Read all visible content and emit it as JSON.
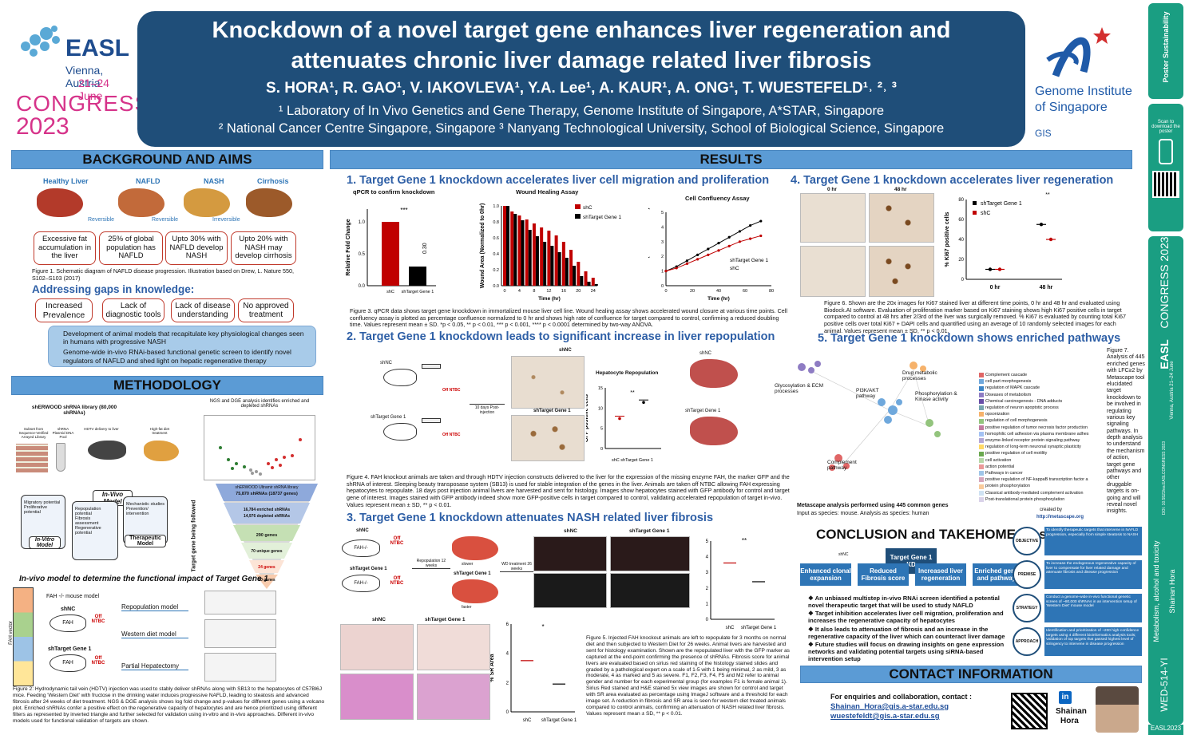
{
  "header": {
    "title_line1": "Knockdown of a novel target gene enhances liver regeneration and",
    "title_line2": "attenuates chronic liver damage related liver fibrosis",
    "authors": "S. HORA¹, R. GAO¹, V. IAKOVLEVA¹, Y.A. Lee¹, A. KAUR¹, A. ONG¹, T. WUESTEFELD¹˒ ²˒ ³",
    "affil1": "¹ Laboratory of In Vivo Genetics and Gene Therapy, Genome Institute of Singapore, A*STAR, Singapore",
    "affil2": "² National Cancer Centre Singapore, Singapore ³ Nanyang Technological University, School of Biological Science, Singapore"
  },
  "easl": {
    "name": "EASL",
    "city": "Vienna, Austria",
    "dates": "21–24 June",
    "congress": "CONGRESS",
    "year": "2023"
  },
  "gis": {
    "line1": "Genome Institute",
    "line2": "of Singapore",
    "abbr": "GIS"
  },
  "sidebar": {
    "scan": "Scan to download the poster",
    "congress": "CONGRESS 2023",
    "easl": "EASL",
    "vienna": "Vienna, Austria 21–24 June",
    "topic": "Metabolism, alcohol and toxicity",
    "author": "Shainan Hora",
    "doi": "DOI: 10.5523/ea.EASLCONGRESS 2023",
    "code": "WED-514-YI",
    "tag": "EASL2023",
    "sustain": "Poster Sustainability"
  },
  "background": {
    "heading": "BACKGROUND AND AIMS",
    "stages": [
      "Healthy Liver",
      "NAFLD",
      "NASH",
      "Cirrhosis"
    ],
    "arrows": [
      "Reversible",
      "Reversible",
      "Irreversible"
    ],
    "boxes": [
      "Excessive fat accumulation in the liver",
      "25% of global population has NAFLD",
      "Upto 30% with NAFLD develop NASH",
      "Upto 20% with NASH may develop cirrhosis"
    ],
    "fig1": "Figure 1. Schematic diagram of NAFLD disease progression. Illustration based on Drew, L. Nature 550, S102–S103 (2017)",
    "gaps_title": "Addressing gaps in knowledge:",
    "gaps": [
      "Increased Prevalence",
      "Lack of diagnostic tools",
      "Lack of disease understanding",
      "No approved treatment"
    ],
    "bullet1": "Development of animal models that recapitulate key physiological changes seen in humans with progressive NASH",
    "bullet2": "Genome-wide in-vivo RNAi-based functional genetic screen to identify novel regulators of NAFLD and shed light on hepatic regenerative therapy"
  },
  "methodology": {
    "heading": "METHODOLOGY",
    "library": "shERWOOD shRNA library (80,000 shRNAs)",
    "ngs": "NGS and DGE analysis identifies enriched and depleted shRNAs",
    "steps": [
      "Subset from Sequence-Verified Arrayed Library",
      "shRNA Plasmid DNA Pool",
      "HDTV delivery to liver",
      "High-fat diet treatment"
    ],
    "funnel": [
      "shERWOOD Ultramir shRNA library",
      "75,870 shRNAs (18737 genes)",
      "2-fold change and p≤0.05",
      "16,784 enriched shRNAs",
      "14,976 depleted shRNAs",
      "2 or more shRNAs, LFC≥1, LFC≤-1, FDR p-value",
      "290 genes",
      "Theoretical QC",
      "70 unique genes",
      "In-vitro QC",
      "24 genes",
      "In-vivo QC",
      "10 genes"
    ],
    "invivo": "In-Vivo Model",
    "invitro": "In-Vitro Model",
    "therapeutic": "Therapeutic Model",
    "invitro_items": [
      "Migratory potential",
      "Proliferative potential"
    ],
    "invivo_items": [
      "Repopulation potential",
      "Fibrosis assessment",
      "Regenerative potential"
    ],
    "ther_items": [
      "Mechanistic studies",
      "Prevention/ intervention"
    ],
    "vertical": "Target gene being followed",
    "sub": "In-vivo model to determine the functional impact of Target Gene 1",
    "mouse": "FAH -/- mouse model",
    "shnc": "shNC",
    "shtg": "shTarget Gene 1",
    "off": "Off NTBC",
    "fahvector": "FAH vector",
    "models": [
      "Repopulation model",
      "Western diet model",
      "Partial Hepatectomy"
    ],
    "fig2": "Figure 2: Hydrodynamic tail vein (HDTV) injection was used to stably deliver shRNAs along with SB13 to the hepatocytes of C57Bl6J mice. Feeding 'Western Diet' with fructose in the drinking water induces progressive NAFLD, leading to steatosis and advanced fibrosis after 24 weeks of diet treatment. NGS & DGE analysis shows log fold change and p-values for different genes using a volcano plot. Enriched shRNAs confer a positive effect on the regenerative capacity of hepatocytes and are hence prioritized using different filters as represented by inverted triangle and further selected for validation using in-vitro and in-vivo approaches. Different in-vivo models used for functional validation of targets are shown."
  },
  "results": {
    "heading": "RESULTS",
    "s1": "1. Target Gene 1 knockdown accelerates liver cell migration and proliferation",
    "qpcr_title": "qPCR to confirm knockdown",
    "wound_title": "Wound Healing Assay",
    "conf_title": "Cell  Confluency Assay",
    "fig3": "Figure 3. qPCR data shows target gene knockdown in immortalized mouse liver cell line. Wound healing assay shows accelerated wound closure at various time points. Cell confluency assay is plotted as percentage confluence normalized to 0 hr and shows high rate of confluence for target compared to control, confirming a reduced doubling time. Values represent mean ± SD. *p < 0.05, ** p < 0.01, *** p < 0.001, **** p < 0.0001 determined by two-way ANOVA.",
    "s2": "2. Target Gene 1 knockdown leads to significant increase in liver repopulation",
    "repop_title": "Hepatocyte Repopulation",
    "fig4": "Figure 4. FAH knockout animals are taken and through HDTV injection constructs delivered to the liver for the expression of the missing enzyme FAH, the marker GFP and the shRNA of interest. Sleeping beauty transposase system (SB13) is used for stable integration of the genes in the liver. Animals are taken off NTBC allowing FAH expressing hepatocytes to repopulate. 18 days post injection animal livers are harvested and sent for histology. Images show hepatocytes stained with GFP antibody for control and target gene of interest. Images stained with GFP antibody indeed show more GFP-positive cells in target compared to control, validating accelerated repopulation of target in-vivo. Values represent mean ± SD, ** p < 0.01.",
    "s3": "3. Target Gene 1 knockdown attenuates NASH related liver fibrosis",
    "fib_ylabel": "Fibrosis Score",
    "sr_ylabel": "% SR Area",
    "fig5": "Figure 5. Injected FAH knockout animals are left to repopulate for 3 months on normal diet and then subjected to Western Diet for 26 weeks. Animal livers are harvested and sent for histology examination. Shown are the repopulated liver with the GFP marker as captured at the end-point confirming the presence of shRNAs. Fibrosis score for animal livers are evaluated based on sirius red staining of the histology stained slides and graded by a pathological expert on a scale of 1-5 with 1 being minimal, 2 as mild, 3 as moderate, 4 as marked and 5 as severe. F1, F2, F3, F4, F5 and M2 refer to animal gender and number for each experimental group (for examples F1 is female animal 1). Sirius Red stained and H&E stained 5x view images are shown for control and target with SR area evaluated as percentage using ImageJ software and a threshold for each image set. A reduction in fibrosis and SR area is seen for western diet treated animals compared to control animals, confirming an attenuation of NASH related liver fibrosis. Values represent mean ± SD, ** p < 0.01.",
    "s4": "4. Target Gene 1 knockdown accelerates liver regeneration",
    "ki67_ylabel": "% Ki67 positive cells",
    "fig6": "Figure 6. Shown are the 20x images for Ki67 stained liver at different time points, 0 hr and 48 hr and evaluated using Biodock.AI software. Evaluation of proliferation marker based on Ki67 staining shows high Ki67 positive cells in target compared to control at 48 hrs after 2/3rd of the liver was surgically removed. % Ki67 is evaluated by counting total Ki67 positive cells over total Ki67 + DAPI cells and quantified using an average of 10 randomly selected images for each animal. Values represent mean ± SD, ** p < 0.01.",
    "s5": "5. Target Gene 1 knockdown shows enriched pathways",
    "path_list": [
      "Complement cascade",
      "cell part morphogenesis",
      "regulation of MAPK cascade",
      "Diseases of metabolism",
      "Chemical carcinogenesis - DNA adducts",
      "regulation of neuron apoptotic process",
      "opsonization",
      "regulation of cell morphogenesis",
      "positive regulation of tumor necrosis factor production",
      "homophilic cell adhesion via plasma membrane adhes",
      "enzyme-linked receptor protein signaling pathway",
      "regulation of long-term neuronal synaptic plasticity",
      "positive regulation of cell motility",
      "cell activation",
      "action potential",
      "Pathways in cancer",
      "positive regulation of NF-kappaB transcription factor a",
      "protein phosphorylation",
      "Classical antibody-mediated complement activation",
      "Post-translational protein phosphorylation"
    ],
    "net_labels": [
      "Glycosylation & ECM processes",
      "PI3K/AKT pathway",
      "Drug metabolic processes",
      "Phosphorylation & Kinase activity",
      "Complement pathway"
    ],
    "metascape1": "Metascape analysis performed using 445 common genes",
    "metascape2": "Input as species: mouse. Analysis as species: human",
    "created": "created by",
    "metascape_url": "http://metascape.org",
    "fig7": "Figure 7. Analysis of 445 enriched genes with LFC≥2 by Metascape tool elucidated target knockdown to be involved in regulating various key signaling pathways. In depth analysis to understand the mechanism of action, target gene pathways and other druggable targets is on-going and will reveal novel insights."
  },
  "conclusion": {
    "heading": "CONCLUSION and TAKEHOME message",
    "kd": "Target Gene 1 KD",
    "effects": [
      "Enhanced clonal expansion",
      "Reduced Fibrosis score",
      "Increased liver regeneration",
      "Enriched genes and pathways"
    ],
    "circles": [
      "OBJECTIVE",
      "PREMISE",
      "STRATEGY",
      "APPROACH"
    ],
    "circle_text": [
      "To identify therapeutic targets that intervene in NAFLD progression, especially from simple steatosis to NASH",
      "To increase the endogenous regenerative capacity of liver to compensate for liver related damage and attenuate fibrosis and disease progression",
      "Conduct a genome-wide in-vivo functional genetic screen of ~80,000 shRNAs in an intervention setup of 'Western Diet' mouse model",
      "Identification and prioritization of ~200 high-confidence targets using 4 different bioinformatics analysis tools; Validation of top targets that passed highest level of stringency to intervene in disease progression"
    ],
    "bullets": [
      "An unbiased multistep in-vivo RNAi screen identified a potential novel therapeutic target that will be used to study NAFLD",
      "Target inhibition accelerates liver cell migration, proliferation and increases the regenerative capacity of hepatocytes",
      "It also leads to attenuation of fibrosis and an increase in the regenerative capacity of the liver which can counteract liver damage",
      "Future studies will focus on drawing insights on gene expression networks and validating potential targets using siRNA-based intervention setup"
    ]
  },
  "contact": {
    "heading": "CONTACT INFORMATION",
    "lead": "For enquiries and collaboration, contact :",
    "email1": "Shainan_Hora@gis.a-star.edu.sg",
    "email2": "wuestefeldt@gis.a-star.edu.sg",
    "li": "in",
    "name1": "Shainan",
    "name2": "Hora"
  },
  "chart_data": [
    {
      "type": "bar",
      "title": "qPCR to confirm knockdown",
      "ylabel": "Relative Fold Change",
      "categories": [
        "shC",
        "shTarget Gene 1"
      ],
      "values": [
        1.0,
        0.3
      ],
      "ylim": [
        0,
        1.2
      ],
      "annotations": [
        "***",
        "0.30"
      ]
    },
    {
      "type": "bar",
      "title": "Wound Healing Assay",
      "xlabel": "Time (hr)",
      "ylabel": "Wound Area (Normalized to 0hr)",
      "categories": [
        "0",
        "2",
        "4",
        "6",
        "8",
        "10",
        "12",
        "14",
        "16",
        "18",
        "20",
        "22",
        "24"
      ],
      "ylim": [
        0,
        1.0
      ],
      "series": [
        {
          "name": "shC",
          "values": [
            1.0,
            0.93,
            0.88,
            0.83,
            0.78,
            0.73,
            0.69,
            0.63,
            0.55,
            0.45,
            0.3,
            0.18,
            0.1
          ]
        },
        {
          "name": "shTarget Gene 1",
          "values": [
            1.0,
            0.9,
            0.82,
            0.7,
            0.62,
            0.55,
            0.5,
            0.42,
            0.35,
            0.25,
            0.12,
            0.05,
            0.02
          ]
        }
      ]
    },
    {
      "type": "line",
      "title": "Cell  Confluency Assay",
      "xlabel": "Time (hr)",
      "ylabel": "Confluence (Normalized to 0hr)",
      "xlim": [
        0,
        80
      ],
      "ylim": [
        0,
        5
      ],
      "series": [
        {
          "name": "shTarget Gene 1",
          "x": [
            0,
            8,
            16,
            24,
            32,
            40,
            48,
            56,
            64,
            72
          ],
          "y": [
            1.0,
            1.3,
            1.7,
            2.1,
            2.5,
            2.9,
            3.3,
            3.7,
            4.1,
            4.4
          ]
        },
        {
          "name": "shC",
          "x": [
            0,
            8,
            16,
            24,
            32,
            40,
            48,
            56,
            64,
            72
          ],
          "y": [
            1.0,
            1.2,
            1.5,
            1.8,
            2.1,
            2.4,
            2.7,
            3.0,
            3.2,
            3.4
          ]
        }
      ]
    },
    {
      "type": "scatter",
      "title": "Hepatocyte Repopulation",
      "ylabel": "GFP positive cells",
      "categories": [
        "shC",
        "shTarget Gene 1"
      ],
      "values": [
        8,
        12
      ],
      "ylim": [
        0,
        15
      ],
      "yticks": [
        0,
        5,
        10,
        15
      ]
    },
    {
      "type": "scatter",
      "title": "Fibrosis Score",
      "ylabel": "Fibrosis Score",
      "categories": [
        "shC",
        "shTarget Gene 1"
      ],
      "values": [
        3.6,
        2.4
      ],
      "ylim": [
        0,
        5
      ]
    },
    {
      "type": "scatter",
      "title": "% SR Area",
      "ylabel": "% SR Area",
      "categories": [
        "shC",
        "shTarget Gene 1"
      ],
      "values": [
        3.5,
        1.9
      ],
      "ylim": [
        0,
        6
      ]
    },
    {
      "type": "scatter",
      "title": "Ki67",
      "ylabel": "% Ki67 positive cells",
      "categories": [
        "0 hr",
        "48 hr"
      ],
      "series": [
        {
          "name": "shTarget Gene 1",
          "values": [
            10,
            55
          ]
        },
        {
          "name": "shC",
          "values": [
            10,
            40
          ]
        }
      ],
      "ylim": [
        0,
        80
      ]
    }
  ]
}
